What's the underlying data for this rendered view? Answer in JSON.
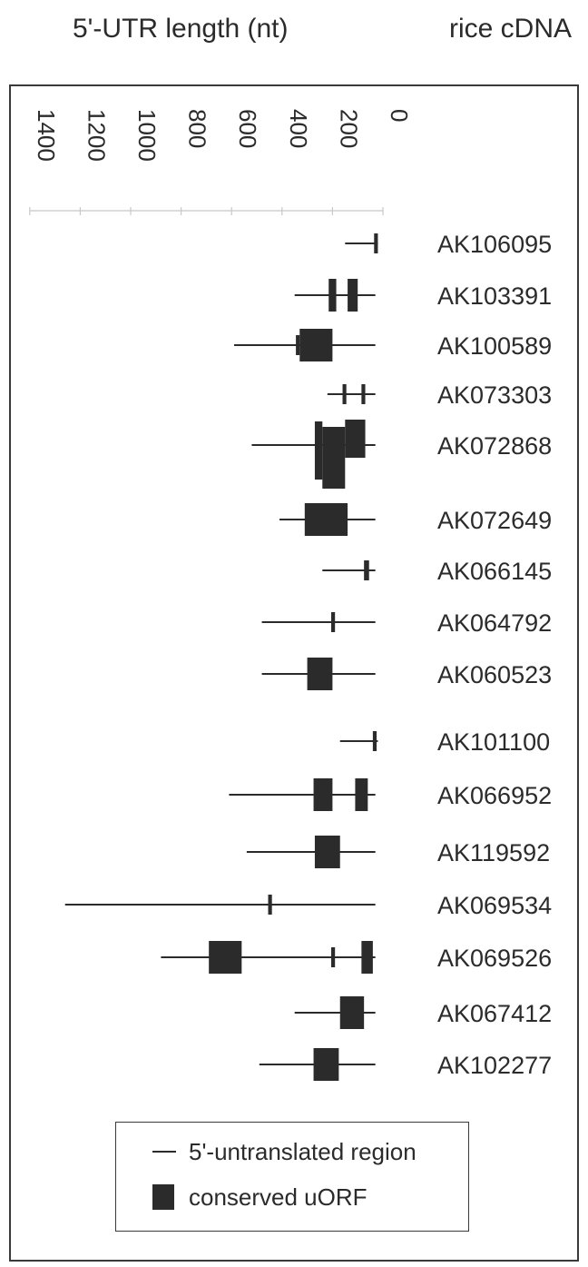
{
  "chart_data": {
    "type": "gantt",
    "header_left": "5'-UTR length (nt)",
    "header_right": "rice cDNA",
    "axis": {
      "direction": "reversed",
      "ticks": [
        1400,
        1200,
        1000,
        800,
        600,
        400,
        200,
        0
      ],
      "range": [
        0,
        1400
      ]
    },
    "legend": {
      "utr_label": "5'-untranslated region",
      "uorf_label": "conserved uORF"
    },
    "colors": {
      "ink": "#2b2b2b"
    },
    "genes": [
      {
        "id": "AK106095",
        "utr": [
          20,
          150
        ],
        "uorfs": [
          [
            20,
            35
          ]
        ]
      },
      {
        "id": "AK103391",
        "utr": [
          30,
          350
        ],
        "uorfs": [
          [
            100,
            140
          ],
          [
            185,
            215
          ]
        ]
      },
      {
        "id": "AK100589",
        "utr": [
          30,
          590
        ],
        "uorfs": [
          [
            200,
            330
          ],
          [
            330,
            345
          ]
        ]
      },
      {
        "id": "AK073303",
        "utr": [
          30,
          220
        ],
        "uorfs": [
          [
            70,
            85
          ],
          [
            145,
            160
          ]
        ]
      },
      {
        "id": "AK072868",
        "utr": [
          30,
          520
        ],
        "uorfs": [
          [
            70,
            150
          ],
          [
            150,
            240
          ],
          [
            240,
            270
          ]
        ]
      },
      {
        "id": "AK072649",
        "utr": [
          30,
          410
        ],
        "uorfs": [
          [
            140,
            310
          ]
        ]
      },
      {
        "id": "AK066145",
        "utr": [
          30,
          240
        ],
        "uorfs": [
          [
            55,
            75
          ]
        ]
      },
      {
        "id": "AK064792",
        "utr": [
          30,
          480
        ],
        "uorfs": [
          [
            190,
            205
          ]
        ]
      },
      {
        "id": "AK060523",
        "utr": [
          30,
          480
        ],
        "uorfs": [
          [
            200,
            300
          ]
        ]
      },
      {
        "id": "AK101100",
        "utr": [
          20,
          170
        ],
        "uorfs": [
          [
            25,
            40
          ]
        ]
      },
      {
        "id": "AK066952",
        "utr": [
          30,
          610
        ],
        "uorfs": [
          [
            60,
            110
          ],
          [
            200,
            275
          ]
        ]
      },
      {
        "id": "AK119592",
        "utr": [
          30,
          540
        ],
        "uorfs": [
          [
            170,
            270
          ]
        ]
      },
      {
        "id": "AK069534",
        "utr": [
          30,
          1260
        ],
        "uorfs": [
          [
            440,
            455
          ]
        ]
      },
      {
        "id": "AK069526",
        "utr": [
          30,
          880
        ],
        "uorfs": [
          [
            40,
            85
          ],
          [
            190,
            205
          ],
          [
            560,
            690
          ]
        ]
      },
      {
        "id": "AK067412",
        "utr": [
          30,
          350
        ],
        "uorfs": [
          [
            75,
            170
          ]
        ]
      },
      {
        "id": "AK102277",
        "utr": [
          30,
          490
        ],
        "uorfs": [
          [
            175,
            275
          ]
        ]
      }
    ]
  }
}
